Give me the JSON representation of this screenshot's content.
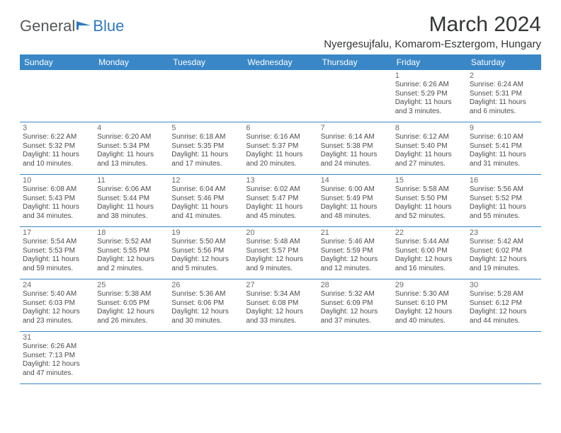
{
  "logo": {
    "text1": "General",
    "text2": "Blue"
  },
  "title": "March 2024",
  "location": "Nyergesujfalu, Komarom-Esztergom, Hungary",
  "colors": {
    "header_bg": "#3a87c7",
    "header_text": "#ffffff",
    "cell_border": "#3a87c7",
    "daynum_color": "#6a6c6e",
    "body_text": "#4a4c4e",
    "title_color": "#333537",
    "logo_gray": "#55585a",
    "logo_blue": "#2f7ac0",
    "background": "#ffffff"
  },
  "typography": {
    "title_fontsize": 30,
    "location_fontsize": 15,
    "logo_fontsize": 22,
    "header_fontsize": 12,
    "daynum_fontsize": 11,
    "body_fontsize": 10
  },
  "weekdays": [
    "Sunday",
    "Monday",
    "Tuesday",
    "Wednesday",
    "Thursday",
    "Friday",
    "Saturday"
  ],
  "grid": [
    [
      null,
      null,
      null,
      null,
      null,
      {
        "n": "1",
        "sr": "Sunrise: 6:26 AM",
        "ss": "Sunset: 5:29 PM",
        "d1": "Daylight: 11 hours",
        "d2": "and 3 minutes."
      },
      {
        "n": "2",
        "sr": "Sunrise: 6:24 AM",
        "ss": "Sunset: 5:31 PM",
        "d1": "Daylight: 11 hours",
        "d2": "and 6 minutes."
      }
    ],
    [
      {
        "n": "3",
        "sr": "Sunrise: 6:22 AM",
        "ss": "Sunset: 5:32 PM",
        "d1": "Daylight: 11 hours",
        "d2": "and 10 minutes."
      },
      {
        "n": "4",
        "sr": "Sunrise: 6:20 AM",
        "ss": "Sunset: 5:34 PM",
        "d1": "Daylight: 11 hours",
        "d2": "and 13 minutes."
      },
      {
        "n": "5",
        "sr": "Sunrise: 6:18 AM",
        "ss": "Sunset: 5:35 PM",
        "d1": "Daylight: 11 hours",
        "d2": "and 17 minutes."
      },
      {
        "n": "6",
        "sr": "Sunrise: 6:16 AM",
        "ss": "Sunset: 5:37 PM",
        "d1": "Daylight: 11 hours",
        "d2": "and 20 minutes."
      },
      {
        "n": "7",
        "sr": "Sunrise: 6:14 AM",
        "ss": "Sunset: 5:38 PM",
        "d1": "Daylight: 11 hours",
        "d2": "and 24 minutes."
      },
      {
        "n": "8",
        "sr": "Sunrise: 6:12 AM",
        "ss": "Sunset: 5:40 PM",
        "d1": "Daylight: 11 hours",
        "d2": "and 27 minutes."
      },
      {
        "n": "9",
        "sr": "Sunrise: 6:10 AM",
        "ss": "Sunset: 5:41 PM",
        "d1": "Daylight: 11 hours",
        "d2": "and 31 minutes."
      }
    ],
    [
      {
        "n": "10",
        "sr": "Sunrise: 6:08 AM",
        "ss": "Sunset: 5:43 PM",
        "d1": "Daylight: 11 hours",
        "d2": "and 34 minutes."
      },
      {
        "n": "11",
        "sr": "Sunrise: 6:06 AM",
        "ss": "Sunset: 5:44 PM",
        "d1": "Daylight: 11 hours",
        "d2": "and 38 minutes."
      },
      {
        "n": "12",
        "sr": "Sunrise: 6:04 AM",
        "ss": "Sunset: 5:46 PM",
        "d1": "Daylight: 11 hours",
        "d2": "and 41 minutes."
      },
      {
        "n": "13",
        "sr": "Sunrise: 6:02 AM",
        "ss": "Sunset: 5:47 PM",
        "d1": "Daylight: 11 hours",
        "d2": "and 45 minutes."
      },
      {
        "n": "14",
        "sr": "Sunrise: 6:00 AM",
        "ss": "Sunset: 5:49 PM",
        "d1": "Daylight: 11 hours",
        "d2": "and 48 minutes."
      },
      {
        "n": "15",
        "sr": "Sunrise: 5:58 AM",
        "ss": "Sunset: 5:50 PM",
        "d1": "Daylight: 11 hours",
        "d2": "and 52 minutes."
      },
      {
        "n": "16",
        "sr": "Sunrise: 5:56 AM",
        "ss": "Sunset: 5:52 PM",
        "d1": "Daylight: 11 hours",
        "d2": "and 55 minutes."
      }
    ],
    [
      {
        "n": "17",
        "sr": "Sunrise: 5:54 AM",
        "ss": "Sunset: 5:53 PM",
        "d1": "Daylight: 11 hours",
        "d2": "and 59 minutes."
      },
      {
        "n": "18",
        "sr": "Sunrise: 5:52 AM",
        "ss": "Sunset: 5:55 PM",
        "d1": "Daylight: 12 hours",
        "d2": "and 2 minutes."
      },
      {
        "n": "19",
        "sr": "Sunrise: 5:50 AM",
        "ss": "Sunset: 5:56 PM",
        "d1": "Daylight: 12 hours",
        "d2": "and 5 minutes."
      },
      {
        "n": "20",
        "sr": "Sunrise: 5:48 AM",
        "ss": "Sunset: 5:57 PM",
        "d1": "Daylight: 12 hours",
        "d2": "and 9 minutes."
      },
      {
        "n": "21",
        "sr": "Sunrise: 5:46 AM",
        "ss": "Sunset: 5:59 PM",
        "d1": "Daylight: 12 hours",
        "d2": "and 12 minutes."
      },
      {
        "n": "22",
        "sr": "Sunrise: 5:44 AM",
        "ss": "Sunset: 6:00 PM",
        "d1": "Daylight: 12 hours",
        "d2": "and 16 minutes."
      },
      {
        "n": "23",
        "sr": "Sunrise: 5:42 AM",
        "ss": "Sunset: 6:02 PM",
        "d1": "Daylight: 12 hours",
        "d2": "and 19 minutes."
      }
    ],
    [
      {
        "n": "24",
        "sr": "Sunrise: 5:40 AM",
        "ss": "Sunset: 6:03 PM",
        "d1": "Daylight: 12 hours",
        "d2": "and 23 minutes."
      },
      {
        "n": "25",
        "sr": "Sunrise: 5:38 AM",
        "ss": "Sunset: 6:05 PM",
        "d1": "Daylight: 12 hours",
        "d2": "and 26 minutes."
      },
      {
        "n": "26",
        "sr": "Sunrise: 5:36 AM",
        "ss": "Sunset: 6:06 PM",
        "d1": "Daylight: 12 hours",
        "d2": "and 30 minutes."
      },
      {
        "n": "27",
        "sr": "Sunrise: 5:34 AM",
        "ss": "Sunset: 6:08 PM",
        "d1": "Daylight: 12 hours",
        "d2": "and 33 minutes."
      },
      {
        "n": "28",
        "sr": "Sunrise: 5:32 AM",
        "ss": "Sunset: 6:09 PM",
        "d1": "Daylight: 12 hours",
        "d2": "and 37 minutes."
      },
      {
        "n": "29",
        "sr": "Sunrise: 5:30 AM",
        "ss": "Sunset: 6:10 PM",
        "d1": "Daylight: 12 hours",
        "d2": "and 40 minutes."
      },
      {
        "n": "30",
        "sr": "Sunrise: 5:28 AM",
        "ss": "Sunset: 6:12 PM",
        "d1": "Daylight: 12 hours",
        "d2": "and 44 minutes."
      }
    ],
    [
      {
        "n": "31",
        "sr": "Sunrise: 6:26 AM",
        "ss": "Sunset: 7:13 PM",
        "d1": "Daylight: 12 hours",
        "d2": "and 47 minutes."
      },
      null,
      null,
      null,
      null,
      null,
      null
    ]
  ]
}
